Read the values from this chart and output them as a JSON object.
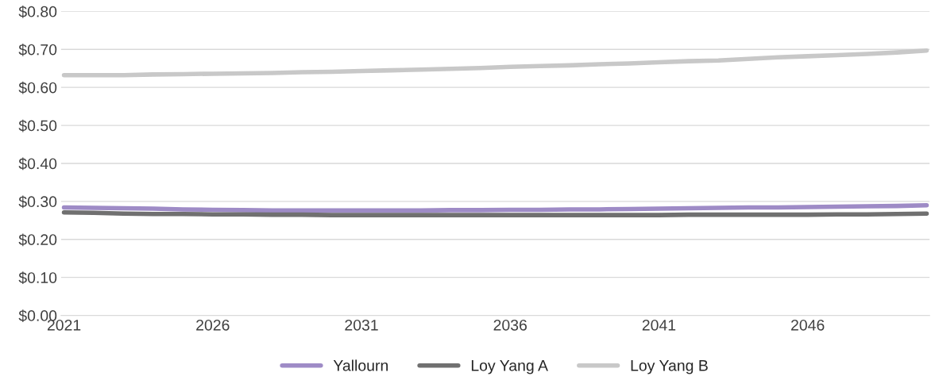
{
  "chart_data": {
    "type": "line",
    "categories": [
      "2021",
      null,
      null,
      null,
      null,
      "2026",
      null,
      null,
      null,
      null,
      "2031",
      null,
      null,
      null,
      null,
      "2036",
      null,
      null,
      null,
      null,
      "2041",
      null,
      null,
      null,
      null,
      "2046",
      null,
      null,
      null,
      null
    ],
    "series": [
      {
        "name": "Yallourn",
        "color": "#9e8bc6",
        "values": [
          0.284,
          0.283,
          0.282,
          0.281,
          0.279,
          0.278,
          0.277,
          0.276,
          0.276,
          0.276,
          0.276,
          0.276,
          0.276,
          0.277,
          0.277,
          0.278,
          0.278,
          0.279,
          0.279,
          0.28,
          0.281,
          0.282,
          0.283,
          0.284,
          0.284,
          0.285,
          0.286,
          0.287,
          0.288,
          0.29
        ]
      },
      {
        "name": "Loy Yang A",
        "color": "#707070",
        "values": [
          0.271,
          0.27,
          0.268,
          0.267,
          0.267,
          0.266,
          0.266,
          0.265,
          0.265,
          0.264,
          0.264,
          0.264,
          0.264,
          0.264,
          0.264,
          0.264,
          0.264,
          0.264,
          0.264,
          0.264,
          0.264,
          0.265,
          0.265,
          0.265,
          0.265,
          0.265,
          0.266,
          0.266,
          0.267,
          0.268
        ]
      },
      {
        "name": "Loy Yang B",
        "color": "#c8c8c8",
        "values": [
          0.632,
          0.632,
          0.632,
          0.634,
          0.635,
          0.636,
          0.637,
          0.638,
          0.64,
          0.641,
          0.643,
          0.645,
          0.647,
          0.649,
          0.651,
          0.654,
          0.656,
          0.658,
          0.661,
          0.663,
          0.666,
          0.669,
          0.671,
          0.675,
          0.679,
          0.682,
          0.685,
          0.688,
          0.692,
          0.697
        ]
      }
    ],
    "ylim": [
      0,
      0.8
    ],
    "yticks": [
      {
        "value": 0,
        "label": "$0.00"
      },
      {
        "value": 0.1,
        "label": "$0.10"
      },
      {
        "value": 0.2,
        "label": "$0.20"
      },
      {
        "value": 0.3,
        "label": "$0.30"
      },
      {
        "value": 0.4,
        "label": "$0.40"
      },
      {
        "value": 0.5,
        "label": "$0.50"
      },
      {
        "value": 0.6,
        "label": "$0.60"
      },
      {
        "value": 0.7,
        "label": "$0.70"
      },
      {
        "value": 0.8,
        "label": "$0.80"
      }
    ],
    "grid": "y",
    "legend": "bottom",
    "marker": "none",
    "line_style": "solid"
  }
}
